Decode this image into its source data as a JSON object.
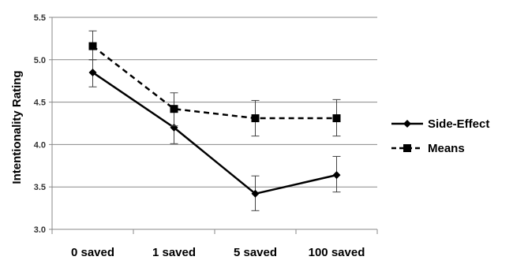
{
  "chart_data": {
    "type": "line",
    "title": "",
    "xlabel": "",
    "ylabel": "Intentionality Rating",
    "categories": [
      "0 saved",
      "1 saved",
      "5 saved",
      "100 saved"
    ],
    "ylim": [
      3.0,
      5.5
    ],
    "yticks": [
      "3.0",
      "3.5",
      "4.0",
      "4.5",
      "5.0",
      "5.5"
    ],
    "grid": "horizontal",
    "legend_position": "right",
    "series": [
      {
        "name": "Side-Effect",
        "line_style": "solid",
        "marker": "diamond",
        "color": "#000000",
        "values": [
          4.85,
          4.2,
          3.42,
          3.64
        ],
        "error_low": [
          4.68,
          4.01,
          3.22,
          3.44
        ],
        "error_high": [
          5.0,
          4.4,
          3.63,
          3.86
        ]
      },
      {
        "name": "Means",
        "line_style": "dashed",
        "marker": "square",
        "color": "#000000",
        "values": [
          5.16,
          4.42,
          4.31,
          4.31
        ],
        "error_low": [
          5.0,
          4.22,
          4.1,
          4.1
        ],
        "error_high": [
          5.34,
          4.61,
          4.52,
          4.53
        ]
      }
    ]
  }
}
